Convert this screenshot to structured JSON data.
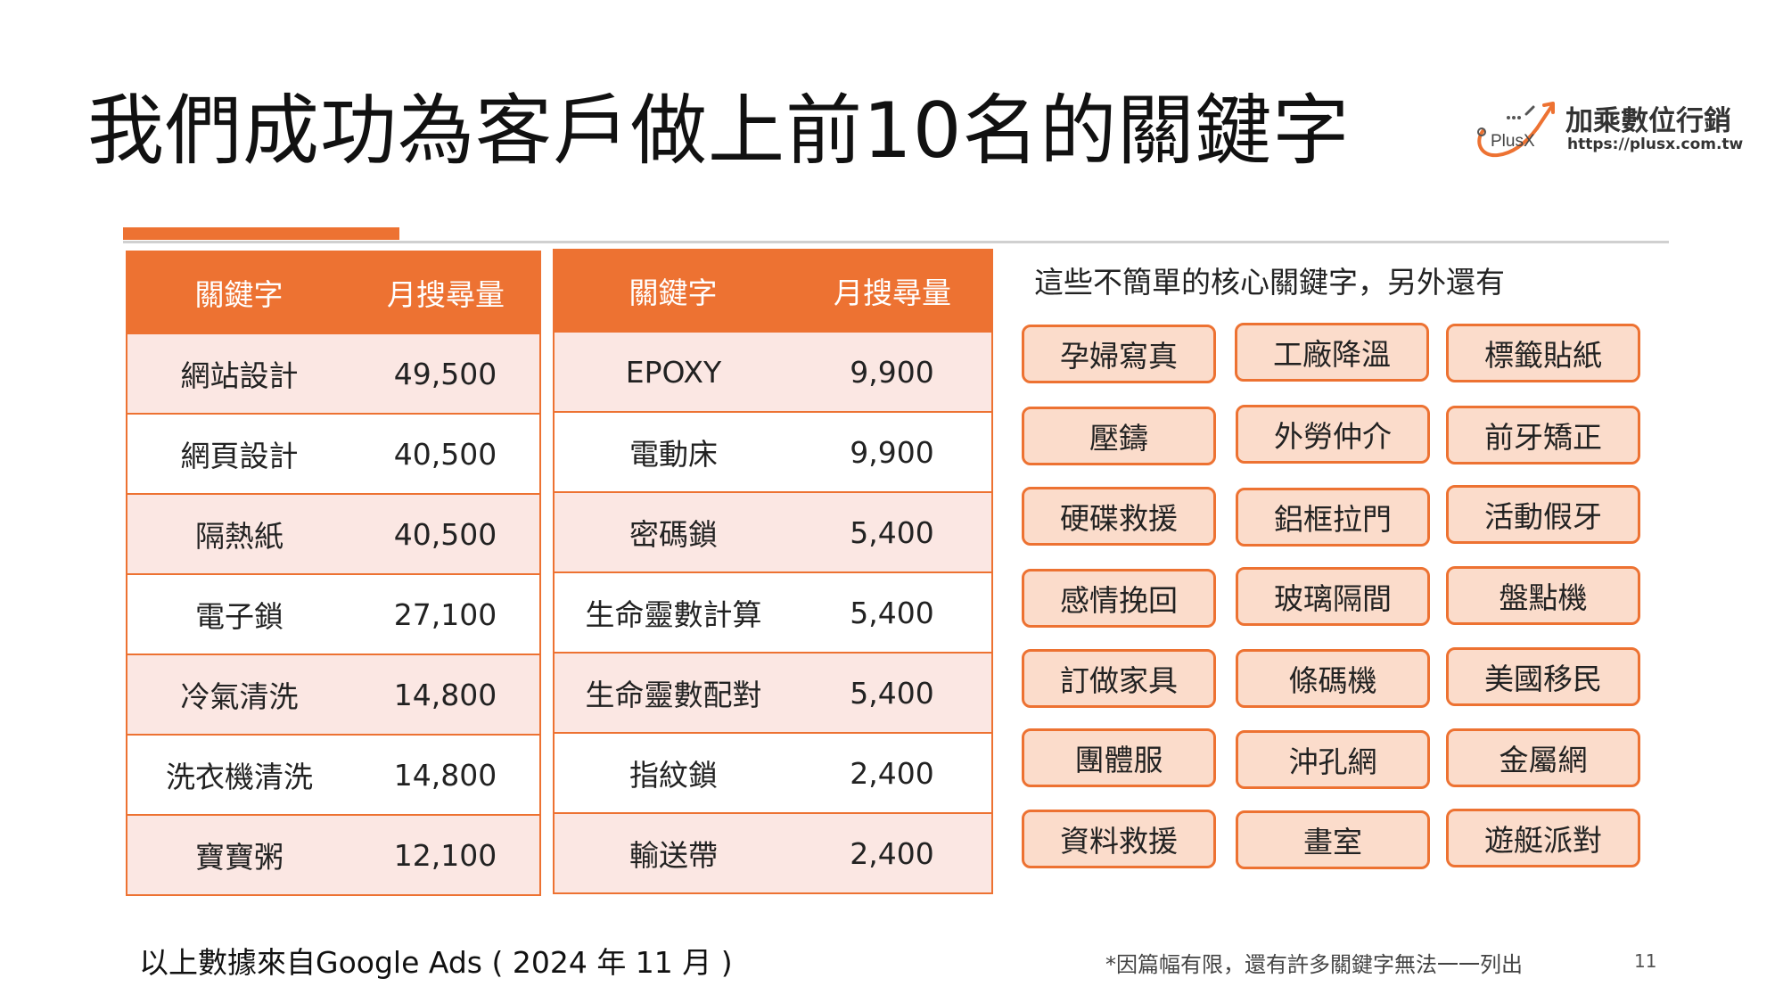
{
  "slide": {
    "title": "我們成功為客戶做上前10名的關鍵字",
    "logo": {
      "name": "加乘數位行銷",
      "mark_text": "PlusX",
      "url": "https://plusx.com.tw"
    },
    "colors": {
      "accent": "#ED7232",
      "row_tint": "#FBE7E3",
      "pill_fill": "#FBDCCB"
    },
    "tables": [
      {
        "headers": [
          "關鍵字",
          "月搜尋量"
        ],
        "rows": [
          [
            "網站設計",
            "49,500"
          ],
          [
            "網頁設計",
            "40,500"
          ],
          [
            "隔熱紙",
            "40,500"
          ],
          [
            "電子鎖",
            "27,100"
          ],
          [
            "冷氣清洗",
            "14,800"
          ],
          [
            "洗衣機清洗",
            "14,800"
          ],
          [
            "寶寶粥",
            "12,100"
          ]
        ]
      },
      {
        "headers": [
          "關鍵字",
          "月搜尋量"
        ],
        "rows": [
          [
            "EPOXY",
            "9,900"
          ],
          [
            "電動床",
            "9,900"
          ],
          [
            "密碼鎖",
            "5,400"
          ],
          [
            "生命靈數計算",
            "5,400"
          ],
          [
            "生命靈數配對",
            "5,400"
          ],
          [
            "指紋鎖",
            "2,400"
          ],
          [
            "輸送帶",
            "2,400"
          ]
        ]
      }
    ],
    "extra": {
      "heading": "這些不簡單的核心關鍵字，另外還有",
      "keywords": [
        "孕婦寫真",
        "工廠降溫",
        "標籤貼紙",
        "壓鑄",
        "外勞仲介",
        "前牙矯正",
        "硬碟救援",
        "鋁框拉門",
        "活動假牙",
        "感情挽回",
        "玻璃隔間",
        "盤點機",
        "訂做家具",
        "條碼機",
        "美國移民",
        "團體服",
        "沖孔網",
        "金屬網",
        "資料救援",
        "畫室",
        "遊艇派對"
      ]
    },
    "footer": {
      "source": "以上數據來自Google Ads ( 2024 年 11 月 )",
      "note": "*因篇幅有限，還有許多關鍵字無法一一列出",
      "page_number": "11"
    }
  }
}
